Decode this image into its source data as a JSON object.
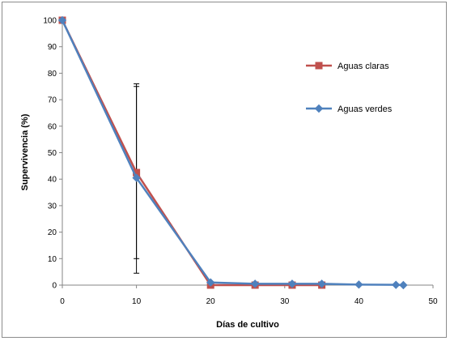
{
  "chart_data": {
    "type": "line",
    "xlabel": "Días de cultivo",
    "ylabel": "Supervivencia (%)",
    "xlim": [
      0,
      50
    ],
    "ylim": [
      0,
      100
    ],
    "xticks": [
      0,
      10,
      20,
      30,
      40,
      50
    ],
    "yticks": [
      0,
      10,
      20,
      30,
      40,
      50,
      60,
      70,
      80,
      90,
      100
    ],
    "grid": false,
    "legend_position": "right",
    "series": [
      {
        "name": "Aguas claras",
        "color": "#c0504d",
        "marker": "square",
        "x": [
          0,
          10,
          20,
          26,
          31,
          35
        ],
        "y": [
          100,
          42.5,
          0,
          0,
          0,
          0
        ]
      },
      {
        "name": "Aguas verdes",
        "color": "#4f81bd",
        "marker": "diamond",
        "x": [
          0,
          10,
          20,
          26,
          31,
          35,
          40,
          45,
          46
        ],
        "y": [
          100,
          40.5,
          1,
          0.5,
          0.5,
          0.5,
          0.2,
          0.1,
          0
        ]
      }
    ],
    "error_bars": [
      {
        "x": 10,
        "low": 4.5,
        "high": 76
      },
      {
        "x": 10,
        "low": 10,
        "high": 75
      }
    ]
  }
}
